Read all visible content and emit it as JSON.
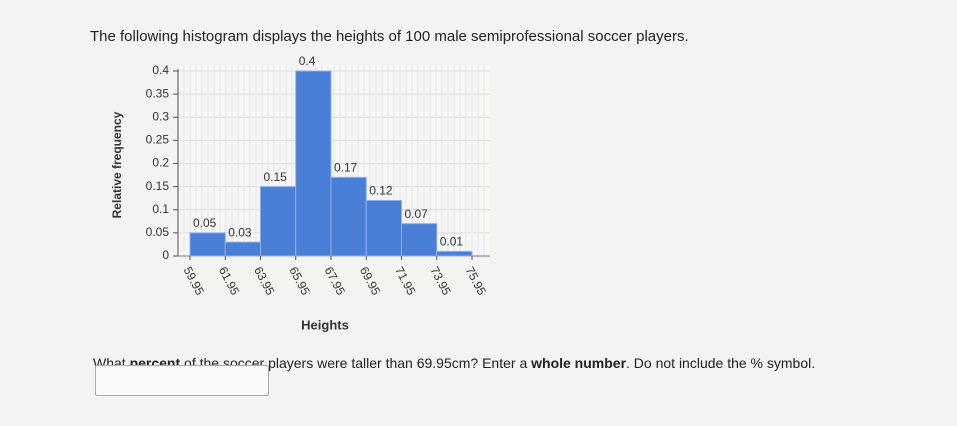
{
  "intro": "The following histogram displays the heights of 100 male semiprofessional soccer players.",
  "chart_data": {
    "type": "histogram",
    "xlabel": "Heights",
    "ylabel": "Relative frequency",
    "bins": [
      59.95,
      61.95,
      63.95,
      65.95,
      67.95,
      69.95,
      71.95,
      73.95,
      75.95
    ],
    "values": [
      0.05,
      0.03,
      0.15,
      0.4,
      0.17,
      0.12,
      0.07,
      0.01
    ],
    "color": "#4a7fd8",
    "xlim": [
      59.95,
      75.95
    ],
    "xticks": [
      59.95,
      61.95,
      63.95,
      65.95,
      67.95,
      69.95,
      71.95,
      73.95,
      75.95
    ],
    "ylim": [
      0,
      0.4
    ],
    "yticks": [
      0,
      0.05,
      0.1,
      0.15,
      0.2,
      0.25,
      0.3,
      0.35,
      0.4
    ],
    "grid": true
  },
  "question": [
    "What ",
    "percent",
    " of the soccer players were taller than 69.95cm? Enter a ",
    "whole number",
    ". Do not include the % symbol."
  ]
}
